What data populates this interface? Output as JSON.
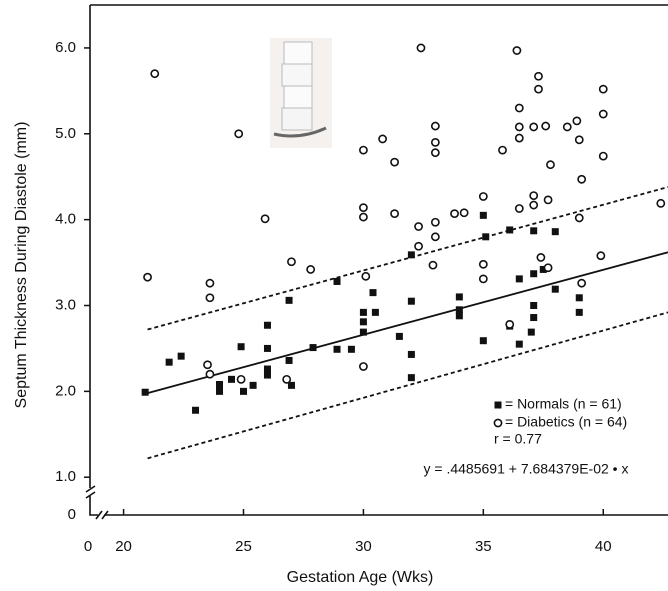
{
  "chart_data": {
    "type": "scatter",
    "xlabel": "Gestation Age (Wks)",
    "ylabel": "Septum Thickness During Diastole (mm)",
    "xlim": [
      18.6,
      42.7
    ],
    "ylim": [
      0.56,
      6.5
    ],
    "xticks": [
      20,
      25,
      30,
      35,
      40
    ],
    "yticks": [
      {
        "value": 1,
        "label": "1.0"
      },
      {
        "value": 2,
        "label": "2.0"
      },
      {
        "value": 3,
        "label": "3.0"
      },
      {
        "value": 4,
        "label": "4.0"
      },
      {
        "value": 5,
        "label": "5.0"
      },
      {
        "value": 6,
        "label": "6.0"
      }
    ],
    "x_origin_label": 0,
    "y_origin_label": 0,
    "series": [
      {
        "name": "= Normals (n = 61)",
        "marker": "square",
        "color": "#111",
        "x": [
          20.9,
          21.9,
          22.4,
          23.0,
          24.0,
          24.0,
          24.5,
          24.9,
          25.0,
          25.4,
          26.0,
          26.0,
          26.0,
          26.0,
          26.9,
          26.9,
          27.0,
          27.9,
          28.9,
          28.9,
          29.5,
          30.0,
          30.0,
          30.0,
          30.4,
          30.5,
          31.5,
          32.0,
          32.0,
          32.0,
          32.0,
          34.0,
          34.0,
          34.0,
          35.0,
          35.1,
          35.0,
          36.1,
          36.1,
          36.5,
          36.5,
          37.1,
          37.1,
          37.1,
          37.1,
          37.0,
          37.5,
          38.0,
          38.0,
          39.0,
          39.0
        ],
        "values": [
          1.99,
          2.34,
          2.41,
          1.78,
          2.0,
          2.08,
          2.14,
          2.52,
          2.0,
          2.07,
          2.77,
          2.5,
          2.26,
          2.19,
          3.06,
          2.36,
          2.07,
          2.51,
          3.28,
          2.49,
          2.49,
          2.92,
          2.81,
          2.69,
          3.15,
          2.92,
          2.64,
          3.59,
          3.05,
          2.43,
          2.16,
          3.1,
          2.95,
          2.88,
          4.05,
          3.8,
          2.59,
          3.88,
          2.76,
          3.31,
          2.55,
          3.87,
          3.37,
          3.0,
          2.86,
          2.69,
          3.42,
          3.86,
          3.19,
          3.09,
          2.92
        ]
      },
      {
        "name": "= Diabetics (n = 64)",
        "marker": "circle",
        "color": "#111",
        "x": [
          21.0,
          21.3,
          23.6,
          23.6,
          23.5,
          23.6,
          24.8,
          24.9,
          25.9,
          26.8,
          27.0,
          27.8,
          30.0,
          30.0,
          30.0,
          30.1,
          30.0,
          30.8,
          31.3,
          31.3,
          32.4,
          32.3,
          32.3,
          33.0,
          33.0,
          33.0,
          33.0,
          33.0,
          32.9,
          33.8,
          34.2,
          35.0,
          35.0,
          35.0,
          35.8,
          36.4,
          36.5,
          36.5,
          36.5,
          36.5,
          36.1,
          37.3,
          37.3,
          37.1,
          37.1,
          37.1,
          37.4,
          37.6,
          37.7,
          37.8,
          37.7,
          38.5,
          38.9,
          39.0,
          39.1,
          39.0,
          39.1,
          40.0,
          40.0,
          40.0,
          39.9,
          42.4
        ],
        "values": [
          3.33,
          5.7,
          3.26,
          3.09,
          2.31,
          2.2,
          5.0,
          2.14,
          4.01,
          2.14,
          3.51,
          3.42,
          4.81,
          4.14,
          4.03,
          3.34,
          2.29,
          4.94,
          4.67,
          4.07,
          6.0,
          3.92,
          3.69,
          5.09,
          4.9,
          4.78,
          3.97,
          3.8,
          3.47,
          4.07,
          4.08,
          4.27,
          3.48,
          3.31,
          4.81,
          5.97,
          5.3,
          5.08,
          4.95,
          4.13,
          2.78,
          5.67,
          5.52,
          5.08,
          4.28,
          4.17,
          3.56,
          5.09,
          4.23,
          4.64,
          3.44,
          5.08,
          5.15,
          4.93,
          4.47,
          4.02,
          3.26,
          5.52,
          5.23,
          4.74,
          3.58,
          4.19
        ]
      }
    ],
    "fit_lines": [
      {
        "style": "solid",
        "x": [
          21,
          42.7
        ],
        "y": [
          1.98,
          3.62
        ]
      },
      {
        "style": "dashed",
        "x": [
          21,
          42.7
        ],
        "y": [
          2.72,
          4.38
        ]
      },
      {
        "style": "dashed",
        "x": [
          21,
          42.7
        ],
        "y": [
          1.22,
          2.92
        ]
      }
    ],
    "annotations": [
      "r = 0.77",
      "y = .4485691 + 7.684379E-02 • x"
    ]
  }
}
